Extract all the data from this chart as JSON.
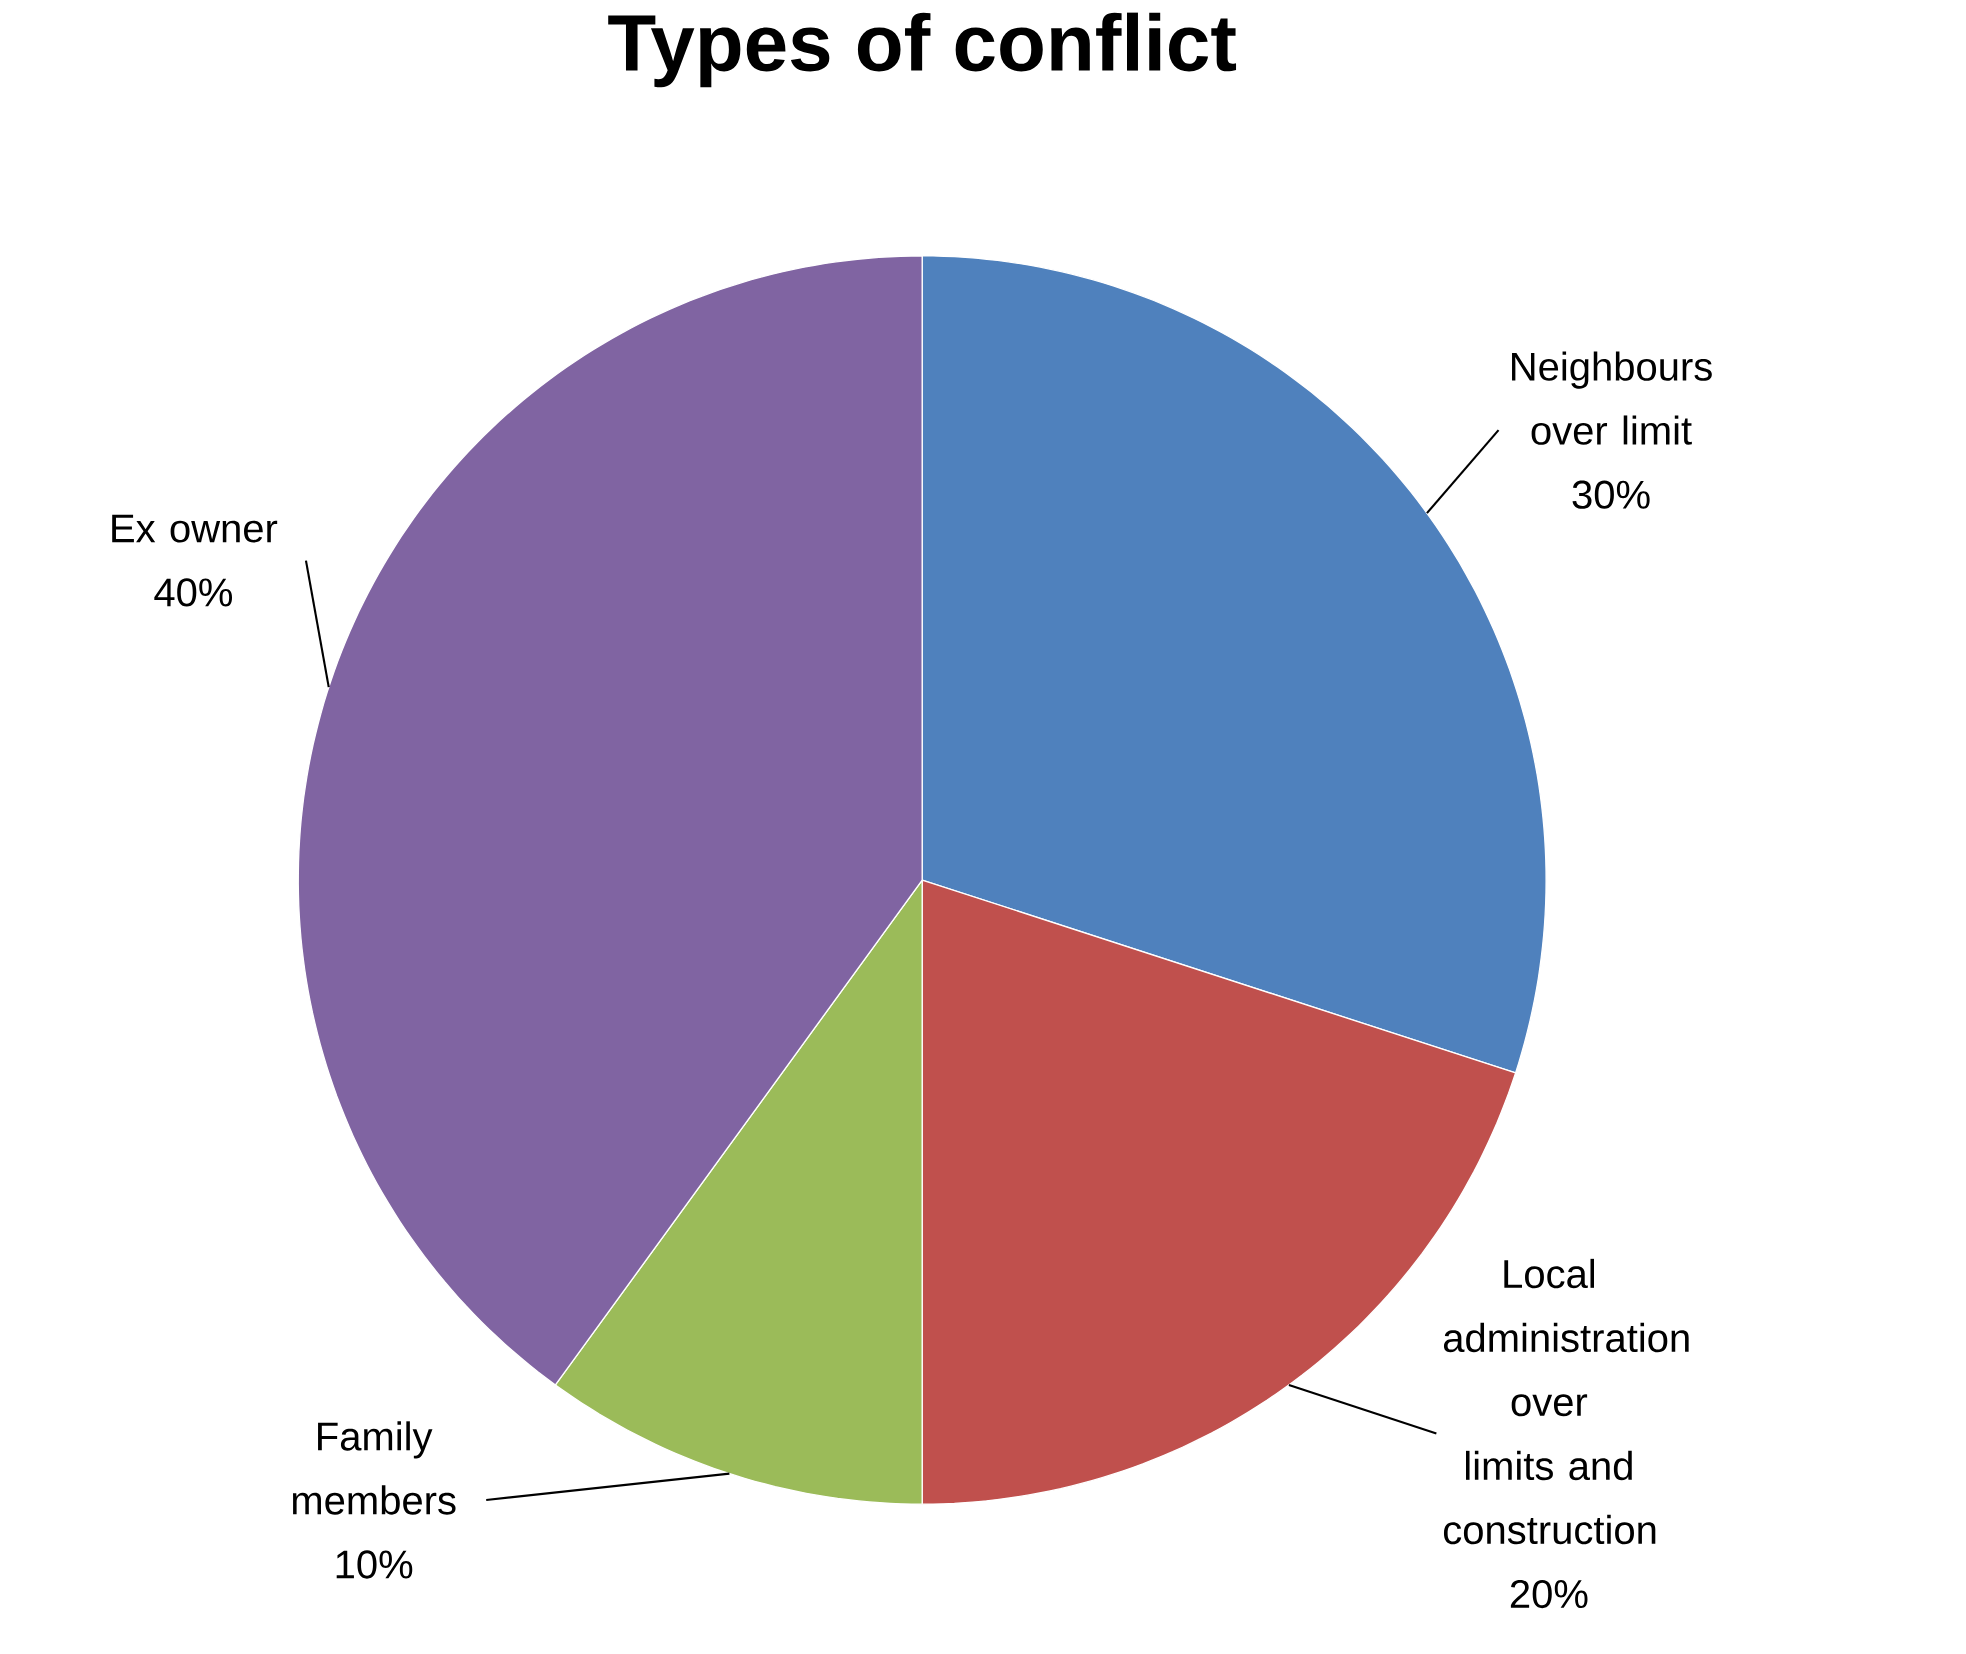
{
  "chart_data": {
    "type": "pie",
    "title": "Types of conflict",
    "categories": [
      "Neighbours over limit",
      "Local administration over limits and construction",
      "Family members",
      "Ex owner"
    ],
    "values": [
      30,
      20,
      10,
      40
    ],
    "value_labels": [
      "30%",
      "20%",
      "10%",
      "40%"
    ],
    "colors": [
      "#4f81bd",
      "#c0504d",
      "#9bbb59",
      "#8064a2"
    ]
  }
}
